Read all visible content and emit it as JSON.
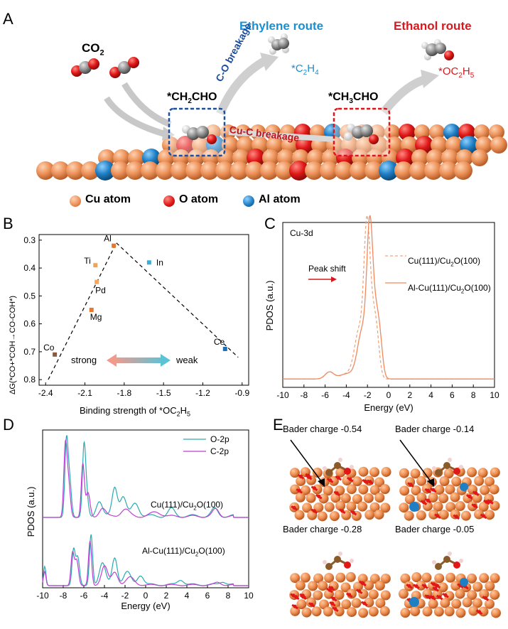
{
  "panel_a": {
    "letter": "A",
    "co2": "CO2",
    "ethylene_route": "Ethylene route",
    "ethanol_route": "Ethanol route",
    "ch2cho": "*CH2CHO",
    "ch3cho": "*CH3CHO",
    "co_breakage": "C-O breakage",
    "cuc_breakage": "Cu-C breakage",
    "c2h4": "*C2H4",
    "oc2h5": "*OC2H5",
    "legend": [
      "Cu atom",
      "O atom",
      "Al atom"
    ],
    "colors": {
      "cu": "#e8955f",
      "o": "#e3131a",
      "al": "#1f7fc4",
      "ethylene": "#1a8fd1",
      "ethanol": "#d7191f"
    }
  },
  "panel_b": {
    "letter": "B",
    "chart_data": {
      "type": "scatter",
      "xlabel": "Binding strength of *OC2H5",
      "ylabel": "ΔG(*CO+*COH→CO-COH*)",
      "xlim": [
        -2.45,
        -0.85
      ],
      "ylim": [
        0.82,
        0.28
      ],
      "xticks": [
        "-2.4",
        "-2.1",
        "-1.8",
        "-1.5",
        "-1.2",
        "-0.9"
      ],
      "yticks": [
        "0.3",
        "0.4",
        "0.5",
        "0.6",
        "0.7",
        "0.8"
      ],
      "points": [
        {
          "label": "Al",
          "x": -1.88,
          "y": 0.32,
          "color": "#e7762f"
        },
        {
          "label": "Ti",
          "x": -2.02,
          "y": 0.39,
          "color": "#f0a35a"
        },
        {
          "label": "Pd",
          "x": -2.01,
          "y": 0.45,
          "color": "#f3a763"
        },
        {
          "label": "Mg",
          "x": -2.05,
          "y": 0.55,
          "color": "#e8792f"
        },
        {
          "label": "Co",
          "x": -2.33,
          "y": 0.71,
          "color": "#8a5a3c"
        },
        {
          "label": "In",
          "x": -1.61,
          "y": 0.38,
          "color": "#3aaed8"
        },
        {
          "label": "Ce",
          "x": -1.03,
          "y": 0.69,
          "color": "#1f6fb4"
        }
      ],
      "annotation_left": "strong",
      "annotation_right": "weak"
    }
  },
  "panel_c": {
    "letter": "C",
    "chart_data": {
      "type": "line",
      "title": "Cu-3d",
      "xlabel": "Energy (eV)",
      "ylabel": "PDOS (a.u.)",
      "xlim": [
        -10,
        10
      ],
      "xticks": [
        "-10",
        "-8",
        "-6",
        "-4",
        "-2",
        "0",
        "2",
        "4",
        "6",
        "8",
        "10"
      ],
      "series": [
        {
          "name": "Cu(111)/Cu2O(100)",
          "style": "dashed",
          "color": "#f2a57d"
        },
        {
          "name": "Al-Cu(111)/Cu2O(100)",
          "style": "solid",
          "color": "#f08a5d"
        }
      ],
      "annotation": "Peak shift"
    }
  },
  "panel_d": {
    "letter": "D",
    "chart_data": {
      "type": "line",
      "xlabel": "Energy (eV)",
      "ylabel": "PDOS (a.u.)",
      "xlim": [
        -10,
        10
      ],
      "xticks": [
        "-10",
        "-8",
        "-6",
        "-4",
        "-2",
        "0",
        "2",
        "4",
        "6",
        "8",
        "10"
      ],
      "series": [
        {
          "name": "O-2p",
          "color": "#2aaab0"
        },
        {
          "name": "C-2p",
          "color": "#c13ed6"
        }
      ],
      "annotations": [
        "Cu(111)/Cu2O(100)",
        "Al-Cu(111)/Cu2O(100)"
      ]
    }
  },
  "panel_e": {
    "letter": "E",
    "labels": [
      "Bader charge -0.54",
      "Bader charge -0.14",
      "Bader charge -0.28",
      "Bader charge -0.05"
    ]
  }
}
